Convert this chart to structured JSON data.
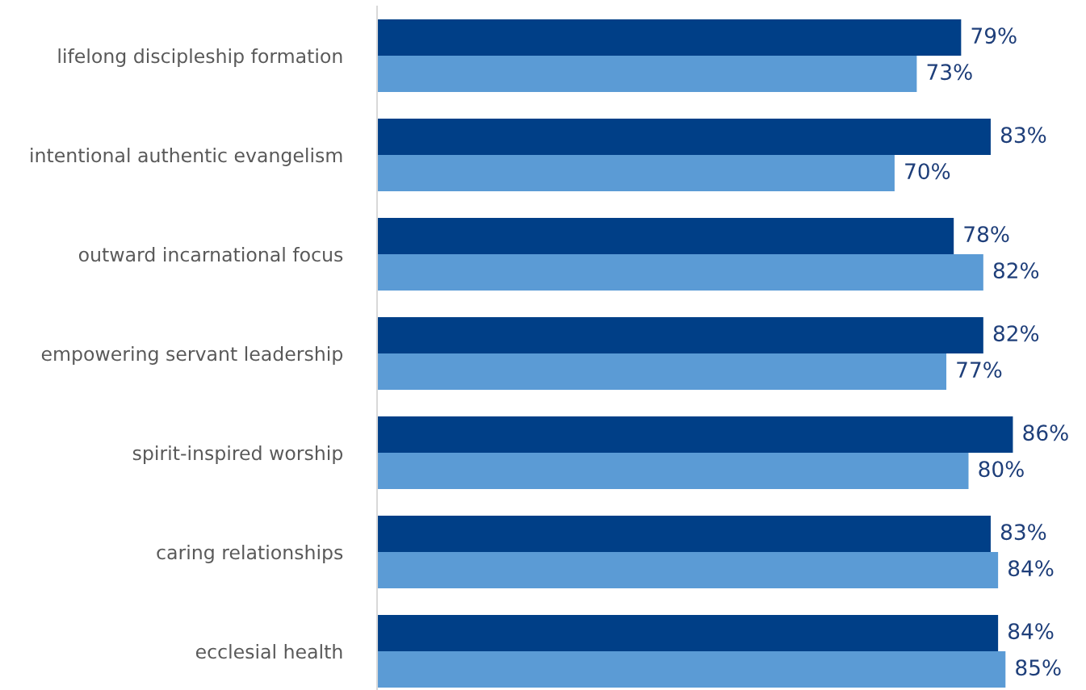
{
  "chart_data": {
    "type": "bar",
    "orientation": "horizontal",
    "categories": [
      "lifelong discipleship formation",
      "intentional authentic evangelism",
      "outward incarnational focus",
      "empowering servant leadership",
      "spirit-inspired worship",
      "caring relationships",
      "ecclesial health"
    ],
    "series": [
      {
        "color": "#003f87",
        "values": [
          79,
          83,
          78,
          82,
          86,
          83,
          84
        ],
        "value_labels": [
          "79%",
          "83%",
          "78%",
          "82%",
          "86%",
          "83%",
          "84%"
        ]
      },
      {
        "color": "#5b9bd5",
        "values": [
          73,
          70,
          82,
          77,
          80,
          84,
          85
        ],
        "value_labels": [
          "73%",
          "70%",
          "82%",
          "77%",
          "80%",
          "84%",
          "85%"
        ]
      }
    ],
    "grid": false,
    "legend": false,
    "tick_labels": "y"
  }
}
